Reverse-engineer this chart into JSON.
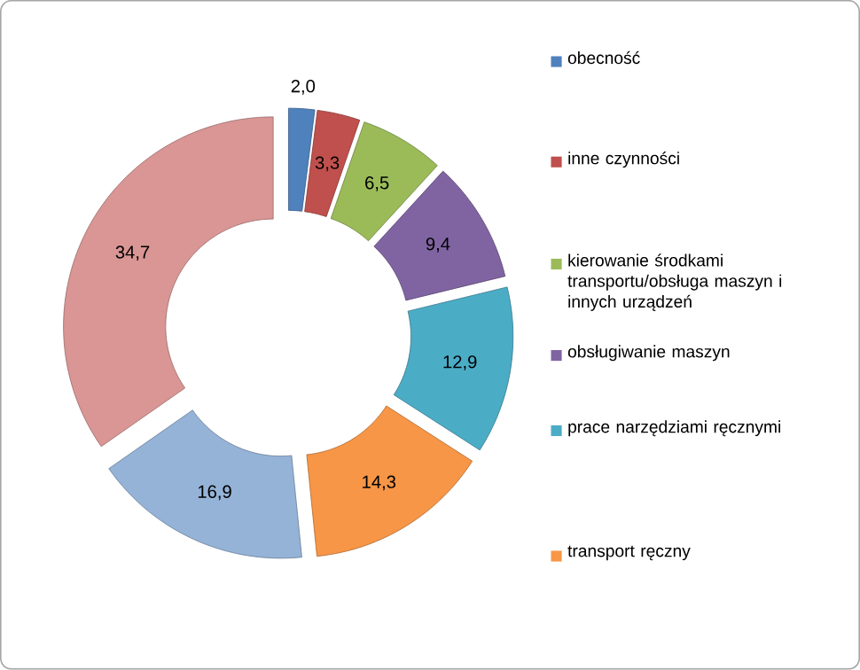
{
  "chart_data": {
    "type": "donut",
    "categories": [
      "obecność",
      "inne czynności",
      "kierowanie środkami transportu/obsługa maszyn i innych urządzeń",
      "obsługiwanie maszyn",
      "prace narzędziami ręcznymi",
      "transport ręczny",
      null,
      null
    ],
    "values": [
      2.0,
      3.3,
      6.5,
      9.4,
      12.9,
      14.3,
      16.9,
      34.7
    ],
    "value_labels": [
      "2,0",
      "3,3",
      "6,5",
      "9,4",
      "12,9",
      "14,3",
      "16,9",
      "34,7"
    ],
    "colors": [
      "#4f81bd",
      "#c0504d",
      "#9bbb59",
      "#8064a2",
      "#4bacc6",
      "#f79646",
      "#95b3d7",
      "#d99694"
    ],
    "legend": "right"
  }
}
